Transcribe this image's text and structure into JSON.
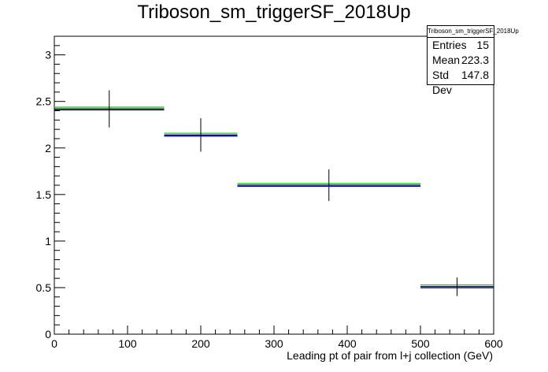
{
  "chart_data": {
    "type": "line",
    "title": "Triboson_sm_triggerSF_2018Up",
    "xlabel": "Leading pt of pair from l+j collection (GeV)",
    "ylabel": "",
    "xlim": [
      0,
      600
    ],
    "ylim": [
      0,
      3.2
    ],
    "x_ticks": [
      "0",
      "100",
      "200",
      "300",
      "400",
      "500",
      "600"
    ],
    "y_ticks": [
      "0",
      "0.5",
      "1",
      "1.5",
      "2",
      "2.5",
      "3"
    ],
    "grid": false,
    "bins": [
      {
        "xlow": 0,
        "xhigh": 150,
        "xcenter": 75,
        "value": 2.42,
        "err": 0.2
      },
      {
        "xlow": 150,
        "xhigh": 250,
        "xcenter": 200,
        "value": 2.14,
        "err": 0.18
      },
      {
        "xlow": 250,
        "xhigh": 500,
        "xcenter": 375,
        "value": 1.6,
        "err": 0.17
      },
      {
        "xlow": 500,
        "xhigh": 600,
        "xcenter": 550,
        "value": 0.51,
        "err": 0.1
      }
    ],
    "series": [
      {
        "color": "#000000",
        "offset": 0.0
      },
      {
        "color": "#0000ff",
        "offset": -0.012
      },
      {
        "color": "#00cc00",
        "offset": 0.018
      }
    ],
    "stats": {
      "box_title": "Triboson_sm_triggerSF_2018Up",
      "entries_label": "Entries",
      "entries": "15",
      "mean_label": "Mean",
      "mean": "223.3",
      "stddev_label": "Std Dev",
      "stddev": "147.8"
    }
  }
}
